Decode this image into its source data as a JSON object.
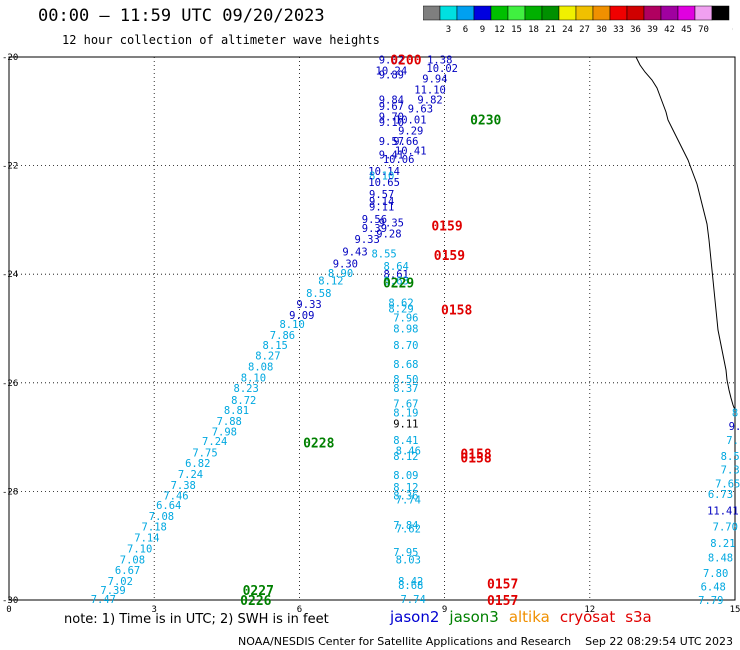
{
  "header": {
    "title": "00:00 – 11:59 UTC 09/20/2023",
    "subtitle": "12 hour collection of altimeter wave heights"
  },
  "colorbar": {
    "unit": "(ft)",
    "stops": [
      {
        "label": "",
        "color": "#7f7f7f"
      },
      {
        "label": "3",
        "color": "#00e0e0"
      },
      {
        "label": "6",
        "color": "#00a0f0"
      },
      {
        "label": "9",
        "color": "#0000e0"
      },
      {
        "label": "12",
        "color": "#00c000"
      },
      {
        "label": "15",
        "color": "#40f040"
      },
      {
        "label": "18",
        "color": "#00b000"
      },
      {
        "label": "21",
        "color": "#009000"
      },
      {
        "label": "24",
        "color": "#f0f000"
      },
      {
        "label": "27",
        "color": "#f0c000"
      },
      {
        "label": "30",
        "color": "#f09000"
      },
      {
        "label": "33",
        "color": "#f00000"
      },
      {
        "label": "36",
        "color": "#d00000"
      },
      {
        "label": "39",
        "color": "#b00060"
      },
      {
        "label": "42",
        "color": "#a000a0"
      },
      {
        "label": "45",
        "color": "#e000e0"
      },
      {
        "label": "70",
        "color": "#f0a0f0"
      },
      {
        "label": "",
        "color": "#000000"
      }
    ]
  },
  "axes": {
    "y_ticks": [
      "-20",
      "-22",
      "-24",
      "-26",
      "-28",
      "-30"
    ],
    "x_ticks": [
      "0",
      "3",
      "6",
      "9",
      "12",
      "15"
    ]
  },
  "note": "note: 1) Time is in UTC; 2) SWH is in feet",
  "satellites": [
    {
      "name": "jason2",
      "color": "#0000d0"
    },
    {
      "name": "jason3",
      "color": "#008000"
    },
    {
      "name": "altika",
      "color": "#f09000"
    },
    {
      "name": "cryosat",
      "color": "#e00000"
    },
    {
      "name": "s3a",
      "color": "#e00000"
    }
  ],
  "footer": "NOAA/NESDIS Center for Satellite Applications and Research    Sep 22 08:29:54 UTC 2023",
  "map": {
    "colors": {
      "dark_blue": "#0000c0",
      "light_blue": "#00a8e0",
      "green": "#008000",
      "red": "#e00000",
      "black": "#000000"
    },
    "wave_labels": [
      {
        "lon": 7.9,
        "lat": -20.05,
        "value": "9.02",
        "color": "dark_blue"
      },
      {
        "lon": 8.9,
        "lat": -20.05,
        "value": "1.38",
        "color": "dark_blue"
      },
      {
        "lon": 7.9,
        "lat": -20.25,
        "value": "10.24",
        "color": "dark_blue"
      },
      {
        "lon": 8.95,
        "lat": -20.2,
        "value": "10.02",
        "color": "dark_blue"
      },
      {
        "lon": 7.9,
        "lat": -20.32,
        "value": "9.89",
        "color": "dark_blue"
      },
      {
        "lon": 8.8,
        "lat": -20.4,
        "value": "9.94",
        "color": "dark_blue"
      },
      {
        "lon": 8.7,
        "lat": -20.6,
        "value": "11.10",
        "color": "dark_blue"
      },
      {
        "lon": 8.7,
        "lat": -20.78,
        "value": "9.82",
        "color": "dark_blue"
      },
      {
        "lon": 7.9,
        "lat": -20.78,
        "value": "9.84",
        "color": "dark_blue"
      },
      {
        "lon": 7.9,
        "lat": -20.9,
        "value": "9.67",
        "color": "dark_blue"
      },
      {
        "lon": 8.5,
        "lat": -20.95,
        "value": "9.63",
        "color": "dark_blue"
      },
      {
        "lon": 7.9,
        "lat": -21.1,
        "value": "9.70",
        "color": "dark_blue"
      },
      {
        "lon": 7.9,
        "lat": -21.2,
        "value": "9.10",
        "color": "dark_blue"
      },
      {
        "lon": 8.3,
        "lat": -21.15,
        "value": "10.01",
        "color": "dark_blue"
      },
      {
        "lon": 8.3,
        "lat": -21.35,
        "value": "9.29",
        "color": "dark_blue"
      },
      {
        "lon": 7.9,
        "lat": -21.55,
        "value": "9.57",
        "color": "dark_blue"
      },
      {
        "lon": 8.2,
        "lat": -21.55,
        "value": "9.66",
        "color": "dark_blue"
      },
      {
        "lon": 8.3,
        "lat": -21.72,
        "value": "10.41",
        "color": "dark_blue"
      },
      {
        "lon": 7.9,
        "lat": -21.8,
        "value": "9.41",
        "color": "dark_blue"
      },
      {
        "lon": 8.05,
        "lat": -21.88,
        "value": "10.06",
        "color": "dark_blue"
      },
      {
        "lon": 7.75,
        "lat": -22.1,
        "value": "10.14",
        "color": "dark_blue"
      },
      {
        "lon": 7.7,
        "lat": -22.18,
        "value": "8.10",
        "color": "light_blue"
      },
      {
        "lon": 7.75,
        "lat": -22.3,
        "value": "10.65",
        "color": "dark_blue"
      },
      {
        "lon": 7.7,
        "lat": -22.52,
        "value": "9.57",
        "color": "dark_blue"
      },
      {
        "lon": 7.7,
        "lat": -22.65,
        "value": "9.14",
        "color": "dark_blue"
      },
      {
        "lon": 7.7,
        "lat": -22.75,
        "value": "9.11",
        "color": "dark_blue"
      },
      {
        "lon": 7.55,
        "lat": -22.98,
        "value": "9.56",
        "color": "dark_blue"
      },
      {
        "lon": 7.9,
        "lat": -23.05,
        "value": "9.35",
        "color": "dark_blue"
      },
      {
        "lon": 7.55,
        "lat": -23.15,
        "value": "9.39",
        "color": "dark_blue"
      },
      {
        "lon": 7.85,
        "lat": -23.25,
        "value": "9.28",
        "color": "dark_blue"
      },
      {
        "lon": 7.4,
        "lat": -23.35,
        "value": "9.33",
        "color": "dark_blue"
      },
      {
        "lon": 7.15,
        "lat": -23.58,
        "value": "9.43",
        "color": "dark_blue"
      },
      {
        "lon": 7.75,
        "lat": -23.62,
        "value": "8.55",
        "color": "light_blue"
      },
      {
        "lon": 6.95,
        "lat": -23.8,
        "value": "9.30",
        "color": "dark_blue"
      },
      {
        "lon": 8.0,
        "lat": -23.85,
        "value": "8.64",
        "color": "light_blue"
      },
      {
        "lon": 6.85,
        "lat": -23.98,
        "value": "8.90",
        "color": "light_blue"
      },
      {
        "lon": 8.0,
        "lat": -24.0,
        "value": "8.61",
        "color": "dark_blue"
      },
      {
        "lon": 6.65,
        "lat": -24.12,
        "value": "8.12",
        "color": "light_blue"
      },
      {
        "lon": 8.0,
        "lat": -24.12,
        "value": "8.63",
        "color": "light_blue"
      },
      {
        "lon": 6.4,
        "lat": -24.35,
        "value": "8.58",
        "color": "light_blue"
      },
      {
        "lon": 6.2,
        "lat": -24.55,
        "value": "9.33",
        "color": "dark_blue"
      },
      {
        "lon": 8.1,
        "lat": -24.52,
        "value": "8.62",
        "color": "light_blue"
      },
      {
        "lon": 8.1,
        "lat": -24.63,
        "value": "8.29",
        "color": "light_blue"
      },
      {
        "lon": 6.05,
        "lat": -24.75,
        "value": "9.09",
        "color": "dark_blue"
      },
      {
        "lon": 8.2,
        "lat": -24.8,
        "value": "7.96",
        "color": "light_blue"
      },
      {
        "lon": 5.85,
        "lat": -24.92,
        "value": "8.10",
        "color": "light_blue"
      },
      {
        "lon": 8.2,
        "lat": -25.0,
        "value": "8.98",
        "color": "light_blue"
      },
      {
        "lon": 5.65,
        "lat": -25.12,
        "value": "7.86",
        "color": "light_blue"
      },
      {
        "lon": 5.5,
        "lat": -25.3,
        "value": "8.15",
        "color": "light_blue"
      },
      {
        "lon": 8.2,
        "lat": -25.3,
        "value": "8.70",
        "color": "light_blue"
      },
      {
        "lon": 5.35,
        "lat": -25.5,
        "value": "8.27",
        "color": "light_blue"
      },
      {
        "lon": 5.2,
        "lat": -25.7,
        "value": "8.08",
        "color": "light_blue"
      },
      {
        "lon": 8.2,
        "lat": -25.65,
        "value": "8.68",
        "color": "light_blue"
      },
      {
        "lon": 5.05,
        "lat": -25.9,
        "value": "8.10",
        "color": "light_blue"
      },
      {
        "lon": 8.2,
        "lat": -25.93,
        "value": "8.50",
        "color": "light_blue"
      },
      {
        "lon": 4.9,
        "lat": -26.1,
        "value": "8.23",
        "color": "light_blue"
      },
      {
        "lon": 8.2,
        "lat": -26.1,
        "value": "8.37",
        "color": "light_blue"
      },
      {
        "lon": 4.85,
        "lat": -26.32,
        "value": "8.72",
        "color": "light_blue"
      },
      {
        "lon": 8.2,
        "lat": -26.38,
        "value": "7.67",
        "color": "light_blue"
      },
      {
        "lon": 4.7,
        "lat": -26.5,
        "value": "8.81",
        "color": "light_blue"
      },
      {
        "lon": 8.2,
        "lat": -26.55,
        "value": "8.19",
        "color": "light_blue"
      },
      {
        "lon": 4.55,
        "lat": -26.7,
        "value": "7.88",
        "color": "light_blue"
      },
      {
        "lon": 8.2,
        "lat": -26.75,
        "value": "9.11",
        "color": "black"
      },
      {
        "lon": 4.45,
        "lat": -26.9,
        "value": "7.98",
        "color": "light_blue"
      },
      {
        "lon": 4.25,
        "lat": -27.07,
        "value": "7.24",
        "color": "light_blue"
      },
      {
        "lon": 8.2,
        "lat": -27.05,
        "value": "8.41",
        "color": "light_blue"
      },
      {
        "lon": 4.05,
        "lat": -27.28,
        "value": "7.75",
        "color": "light_blue"
      },
      {
        "lon": 8.25,
        "lat": -27.25,
        "value": "8.46",
        "color": "light_blue"
      },
      {
        "lon": 8.2,
        "lat": -27.35,
        "value": "8.12",
        "color": "light_blue"
      },
      {
        "lon": 3.9,
        "lat": -27.48,
        "value": "6.82",
        "color": "light_blue"
      },
      {
        "lon": 3.75,
        "lat": -27.68,
        "value": "7.24",
        "color": "light_blue"
      },
      {
        "lon": 8.2,
        "lat": -27.7,
        "value": "8.09",
        "color": "light_blue"
      },
      {
        "lon": 3.6,
        "lat": -27.88,
        "value": "7.38",
        "color": "light_blue"
      },
      {
        "lon": 8.2,
        "lat": -27.92,
        "value": "8.12",
        "color": "light_blue"
      },
      {
        "lon": 3.45,
        "lat": -28.08,
        "value": "7.46",
        "color": "light_blue"
      },
      {
        "lon": 8.2,
        "lat": -28.08,
        "value": "8.36",
        "color": "light_blue"
      },
      {
        "lon": 8.25,
        "lat": -28.15,
        "value": "7.74",
        "color": "light_blue"
      },
      {
        "lon": 3.3,
        "lat": -28.25,
        "value": "6.64",
        "color": "light_blue"
      },
      {
        "lon": 3.15,
        "lat": -28.45,
        "value": "7.08",
        "color": "light_blue"
      },
      {
        "lon": 3.0,
        "lat": -28.65,
        "value": "7.18",
        "color": "light_blue"
      },
      {
        "lon": 8.2,
        "lat": -28.62,
        "value": "7.84",
        "color": "light_blue"
      },
      {
        "lon": 8.25,
        "lat": -28.68,
        "value": "7.62",
        "color": "light_blue"
      },
      {
        "lon": 2.85,
        "lat": -28.85,
        "value": "7.14",
        "color": "light_blue"
      },
      {
        "lon": 2.7,
        "lat": -29.05,
        "value": "7.10",
        "color": "light_blue"
      },
      {
        "lon": 8.2,
        "lat": -29.12,
        "value": "7.95",
        "color": "light_blue"
      },
      {
        "lon": 2.55,
        "lat": -29.25,
        "value": "7.08",
        "color": "light_blue"
      },
      {
        "lon": 8.25,
        "lat": -29.25,
        "value": "8.03",
        "color": "light_blue"
      },
      {
        "lon": 2.45,
        "lat": -29.45,
        "value": "6.67",
        "color": "light_blue"
      },
      {
        "lon": 2.3,
        "lat": -29.65,
        "value": "7.02",
        "color": "light_blue"
      },
      {
        "lon": 8.3,
        "lat": -29.65,
        "value": "8.42",
        "color": "light_blue"
      },
      {
        "lon": 8.3,
        "lat": -29.72,
        "value": "8.68",
        "color": "light_blue"
      },
      {
        "lon": 2.15,
        "lat": -29.82,
        "value": "7.39",
        "color": "light_blue"
      },
      {
        "lon": 1.95,
        "lat": -29.98,
        "value": "7.47",
        "color": "light_blue"
      },
      {
        "lon": 8.35,
        "lat": -29.98,
        "value": "7.74",
        "color": "light_blue"
      },
      {
        "lon": 15.0,
        "lat": -26.55,
        "value": "8",
        "color": "light_blue"
      },
      {
        "lon": 15.0,
        "lat": -26.8,
        "value": "9.",
        "color": "dark_blue"
      },
      {
        "lon": 14.95,
        "lat": -27.05,
        "value": "7.",
        "color": "light_blue"
      },
      {
        "lon": 14.9,
        "lat": -27.35,
        "value": "8.5",
        "color": "light_blue"
      },
      {
        "lon": 14.9,
        "lat": -27.6,
        "value": "7.3",
        "color": "light_blue"
      },
      {
        "lon": 14.85,
        "lat": -27.85,
        "value": "7.65",
        "color": "light_blue"
      },
      {
        "lon": 14.7,
        "lat": -28.05,
        "value": "6.73",
        "color": "light_blue"
      },
      {
        "lon": 14.75,
        "lat": -28.35,
        "value": "11.41",
        "color": "dark_blue"
      },
      {
        "lon": 14.8,
        "lat": -28.65,
        "value": "7.70",
        "color": "light_blue"
      },
      {
        "lon": 14.75,
        "lat": -28.95,
        "value": "8.21",
        "color": "light_blue"
      },
      {
        "lon": 14.7,
        "lat": -29.22,
        "value": "8.48",
        "color": "light_blue"
      },
      {
        "lon": 14.6,
        "lat": -29.5,
        "value": "7.80",
        "color": "light_blue"
      },
      {
        "lon": 14.55,
        "lat": -29.75,
        "value": "6.48",
        "color": "light_blue"
      },
      {
        "lon": 14.5,
        "lat": -30.0,
        "value": "7.79",
        "color": "light_blue"
      }
    ],
    "time_labels": [
      {
        "lon": 8.2,
        "lat": -20.05,
        "value": "0200",
        "color": "red"
      },
      {
        "lon": 9.85,
        "lat": -21.15,
        "value": "0230",
        "color": "green"
      },
      {
        "lon": 9.05,
        "lat": -23.1,
        "value": "0159",
        "color": "red"
      },
      {
        "lon": 9.1,
        "lat": -23.65,
        "value": "0159",
        "color": "red"
      },
      {
        "lon": 8.05,
        "lat": -24.15,
        "value": "0229",
        "color": "green"
      },
      {
        "lon": 9.25,
        "lat": -24.65,
        "value": "0158",
        "color": "red"
      },
      {
        "lon": 6.4,
        "lat": -27.1,
        "value": "0228",
        "color": "green"
      },
      {
        "lon": 9.65,
        "lat": -27.3,
        "value": "0158",
        "color": "red"
      },
      {
        "lon": 9.65,
        "lat": -27.38,
        "value": "0158",
        "color": "red"
      },
      {
        "lon": 10.2,
        "lat": -29.7,
        "value": "0157",
        "color": "red"
      },
      {
        "lon": 10.2,
        "lat": -30.0,
        "value": "0157",
        "color": "red"
      },
      {
        "lon": 5.15,
        "lat": -29.82,
        "value": "0227",
        "color": "green"
      },
      {
        "lon": 5.1,
        "lat": -30.0,
        "value": "0226",
        "color": "green"
      }
    ]
  }
}
